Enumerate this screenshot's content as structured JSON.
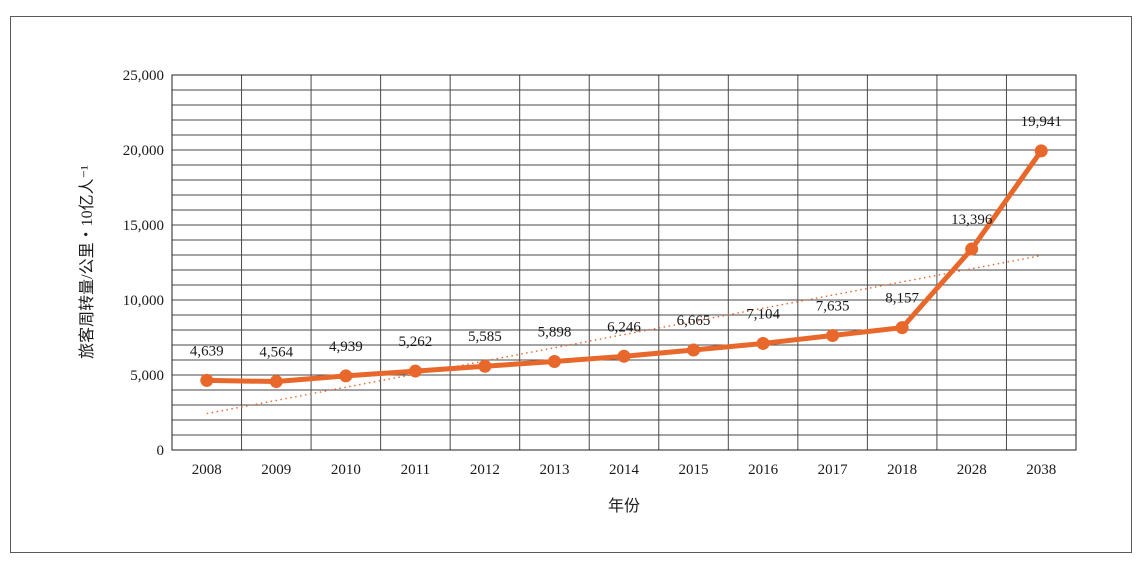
{
  "chart_data": {
    "type": "line",
    "categories": [
      "2008",
      "2009",
      "2010",
      "2011",
      "2012",
      "2013",
      "2014",
      "2015",
      "2016",
      "2017",
      "2018",
      "2028",
      "2038"
    ],
    "series": [
      {
        "values": [
          4639,
          4564,
          4939,
          5262,
          5585,
          5898,
          6246,
          6665,
          7104,
          7635,
          8157,
          13396,
          19941
        ],
        "labels": [
          "4,639",
          "4,564",
          "4,939",
          "5,262",
          "5,585",
          "5,898",
          "6,246",
          "6,665",
          "7,104",
          "7,635",
          "8,157",
          "13,396",
          "19,941"
        ],
        "color": "#e8672a",
        "marker": "circle"
      }
    ],
    "trendline": {
      "type": "linear",
      "style": "dotted",
      "color": "#e8672a"
    },
    "xlabel": "年份",
    "ylabel": "旅客周转量/公里・10亿人⁻¹",
    "ylim": [
      0,
      25000
    ],
    "yticks": [
      0,
      5000,
      10000,
      15000,
      20000,
      25000
    ],
    "ytick_labels": [
      "0",
      "5,000",
      "10,000",
      "15,000",
      "20,000",
      "25,000"
    ],
    "grid": true,
    "legend": "none"
  }
}
